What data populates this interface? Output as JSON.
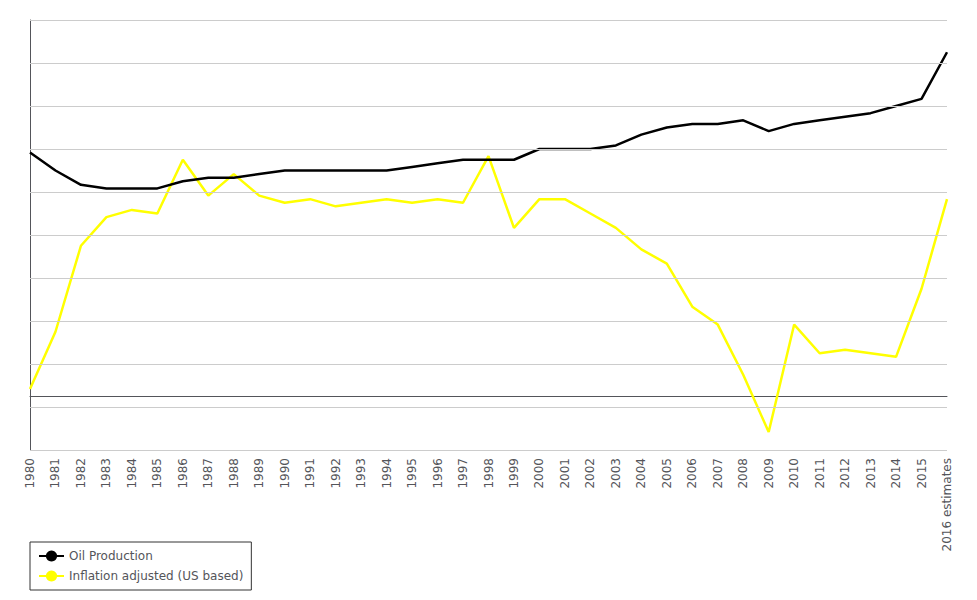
{
  "chart_data": {
    "type": "line",
    "categories": [
      "1980",
      "1981",
      "1982",
      "1983",
      "1984",
      "1985",
      "1986",
      "1987",
      "1988",
      "1989",
      "1990",
      "1991",
      "1992",
      "1993",
      "1994",
      "1995",
      "1996",
      "1997",
      "1998",
      "1999",
      "2000",
      "2001",
      "2002",
      "2003",
      "2004",
      "2005",
      "2006",
      "2007",
      "2008",
      "2009",
      "2010",
      "2011",
      "2012",
      "2013",
      "2014",
      "2015",
      "2016 estimates"
    ],
    "series": [
      {
        "name": "Oil Production",
        "color": "#000000",
        "values": [
          68,
          63,
          59,
          58,
          58,
          58,
          60,
          61,
          61,
          62,
          63,
          63,
          63,
          63,
          63,
          64,
          65,
          66,
          66,
          66,
          69,
          69,
          69,
          70,
          73,
          75,
          76,
          76,
          77,
          74,
          76,
          77,
          78,
          79,
          81,
          83,
          96
        ]
      },
      {
        "name": "Inflation adjusted (US based)",
        "color": "#ffff00",
        "values": [
          2,
          18,
          42,
          50,
          52,
          51,
          66,
          56,
          62,
          56,
          54,
          55,
          53,
          54,
          55,
          54,
          55,
          54,
          67,
          47,
          55,
          55,
          51,
          47,
          41,
          37,
          25,
          20,
          6,
          -10,
          20,
          12,
          13,
          12,
          11,
          30,
          55
        ]
      }
    ],
    "ylim": [
      -15,
      105
    ],
    "yticks": [
      -15,
      -3,
      9,
      21,
      33,
      45,
      57,
      69,
      81,
      93,
      105
    ],
    "grid": true,
    "legend": "lower left",
    "tick_labels": "x"
  }
}
